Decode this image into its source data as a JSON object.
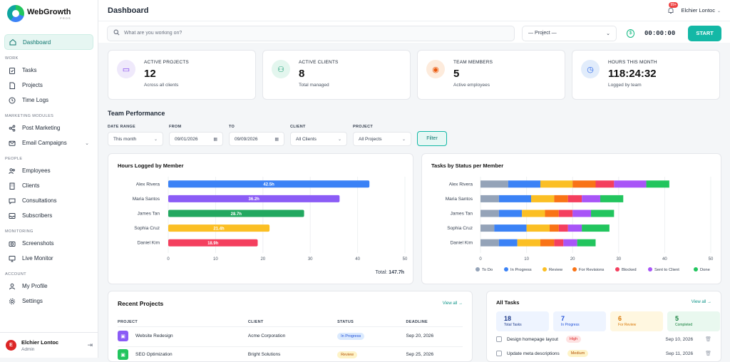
{
  "brand": {
    "name": "WebGrowth",
    "tagline": "PROS"
  },
  "sidebar": {
    "dashboard": "Dashboard",
    "sections": {
      "work": "WORK",
      "marketing": "MARKETING MODULES",
      "people": "PEOPLE",
      "monitoring": "MONITORING",
      "account": "ACCOUNT"
    },
    "items": {
      "tasks": "Tasks",
      "projects": "Projects",
      "time_logs": "Time Logs",
      "post_marketing": "Post Marketing",
      "email_campaigns": "Email Campaigns",
      "employees": "Employees",
      "clients": "Clients",
      "consultations": "Consultations",
      "subscribers": "Subscribers",
      "screenshots": "Screenshots",
      "live_monitor": "Live Monitor",
      "my_profile": "My Profile",
      "settings": "Settings"
    },
    "user": {
      "initial": "E",
      "name": "Elchier Lontoc",
      "role": "Admin"
    }
  },
  "header": {
    "title": "Dashboard",
    "notification_count": "99+",
    "user_name": "Elchier Lontoc"
  },
  "tracker": {
    "search_placeholder": "What are you working on?",
    "project_select": "— Project —",
    "timer": "00:00:00",
    "start_label": "START"
  },
  "stats": [
    {
      "label": "ACTIVE PROJECTS",
      "value": "12",
      "sub": "Across all clients",
      "icon": "folder-icon",
      "bg": "#efe9fb",
      "fg": "#7c3aed"
    },
    {
      "label": "ACTIVE CLIENTS",
      "value": "8",
      "sub": "Total managed",
      "icon": "users-icon",
      "bg": "#e3f6ee",
      "fg": "#059669"
    },
    {
      "label": "TEAM MEMBERS",
      "value": "5",
      "sub": "Active employees",
      "icon": "person-icon",
      "bg": "#fdebdc",
      "fg": "#ea580c"
    },
    {
      "label": "HOURS THIS MONTH",
      "value": "118:24:32",
      "sub": "Logged by team",
      "icon": "clock-icon",
      "bg": "#e1ecfb",
      "fg": "#2563eb"
    }
  ],
  "team_performance": {
    "title": "Team Performance",
    "filters": {
      "date_range_label": "DATE RANGE",
      "date_range_value": "This month",
      "from_label": "FROM",
      "from_value": "09/01/2026",
      "to_label": "TO",
      "to_value": "09/09/2026",
      "client_label": "CLIENT",
      "client_value": "All Clients",
      "project_label": "PROJECT",
      "project_value": "All Projects",
      "filter_button": "Filter"
    }
  },
  "hours_card": {
    "title": "Hours Logged by Member",
    "total_label": "Total:",
    "total_value": "147.7h"
  },
  "status_card": {
    "title": "Tasks by Status per Member"
  },
  "chart_data": [
    {
      "type": "bar",
      "orientation": "horizontal",
      "title": "Hours Logged by Member",
      "categories": [
        "Alex Rivera",
        "Maria Santos",
        "James Tan",
        "Sophia Cruz",
        "Daniel Kim"
      ],
      "values": [
        42.5,
        36.2,
        28.7,
        21.4,
        18.9
      ],
      "data_labels": [
        "42.5h",
        "36.2h",
        "28.7h",
        "21.4h",
        "18.9h"
      ],
      "colors": [
        "#3b82f6",
        "#8b5cf6",
        "#22a860",
        "#fbbf24",
        "#f43f5e"
      ],
      "xlim": [
        0,
        50
      ],
      "xticks": [
        0,
        10,
        20,
        30,
        40,
        50
      ],
      "grid": true
    },
    {
      "type": "bar",
      "orientation": "horizontal",
      "stacked": true,
      "title": "Tasks by Status per Member",
      "categories": [
        "Alex Rivera",
        "Maria Santos",
        "James Tan",
        "Sophia Cruz",
        "Daniel Kim"
      ],
      "series": [
        {
          "name": "To Do",
          "color": "#94a3b8",
          "values": [
            6,
            4,
            4,
            3,
            4
          ]
        },
        {
          "name": "In Progress",
          "color": "#3b82f6",
          "values": [
            7,
            7,
            5,
            7,
            4
          ]
        },
        {
          "name": "Review",
          "color": "#fbbf24",
          "values": [
            7,
            5,
            5,
            5,
            5
          ]
        },
        {
          "name": "For Revisions",
          "color": "#f97316",
          "values": [
            5,
            3,
            3,
            2,
            3
          ]
        },
        {
          "name": "Blocked",
          "color": "#f43f5e",
          "values": [
            4,
            3,
            3,
            2,
            2
          ]
        },
        {
          "name": "Sent to Client",
          "color": "#a855f7",
          "values": [
            7,
            4,
            4,
            3,
            3
          ]
        },
        {
          "name": "Done",
          "color": "#22c55e",
          "values": [
            5,
            5,
            5,
            6,
            4
          ]
        }
      ],
      "xlim": [
        0,
        50
      ],
      "xticks": [
        0,
        10,
        20,
        30,
        40,
        50
      ],
      "legend": "bottom",
      "grid": true
    }
  ],
  "recent_projects": {
    "title": "Recent Projects",
    "view_all": "View all →",
    "headers": [
      "PROJECT",
      "CLIENT",
      "STATUS",
      "DEADLINE"
    ],
    "rows": [
      {
        "name": "Website Redesign",
        "client": "Acme Corporation",
        "status": "In Progress",
        "deadline": "Sep 20, 2026",
        "icon_color": "#8b5cf6",
        "status_bg": "#dbeafe",
        "status_fg": "#1d4ed8"
      },
      {
        "name": "SEO Optimization",
        "client": "Bright Solutions",
        "status": "Review",
        "deadline": "Sep 25, 2026",
        "icon_color": "#22c55e",
        "status_bg": "#fef3c7",
        "status_fg": "#b45309"
      }
    ]
  },
  "all_tasks": {
    "title": "All Tasks",
    "view_all": "View all →",
    "summary": [
      {
        "value": "18",
        "label": "Total Tasks",
        "bg": "#eef4ff",
        "fg": "#1e3a8a"
      },
      {
        "value": "7",
        "label": "In Progress",
        "bg": "#eef4ff",
        "fg": "#1d4ed8"
      },
      {
        "value": "6",
        "label": "For Review",
        "bg": "#fff7e0",
        "fg": "#d97706"
      },
      {
        "value": "5",
        "label": "Completed",
        "bg": "#e9f8ef",
        "fg": "#15803d"
      }
    ],
    "items": [
      {
        "name": "Design homepage layout",
        "priority": "High",
        "date": "Sep 10, 2026",
        "pr_bg": "#fee2e2",
        "pr_fg": "#dc2626"
      },
      {
        "name": "Update meta descriptions",
        "priority": "Medium",
        "date": "Sep 11, 2026",
        "pr_bg": "#fef3c7",
        "pr_fg": "#b45309"
      }
    ]
  }
}
